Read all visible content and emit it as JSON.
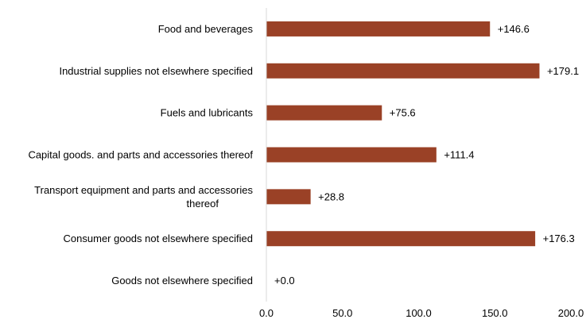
{
  "chart_data": {
    "type": "bar",
    "orientation": "horizontal",
    "categories": [
      [
        "Food and beverages"
      ],
      [
        "Industrial supplies not elsewhere specified"
      ],
      [
        "Fuels and lubricants"
      ],
      [
        "Capital goods. and parts and accessories thereof"
      ],
      [
        "Transport equipment and parts and accessories",
        "thereof"
      ],
      [
        "Consumer goods not elsewhere specified"
      ],
      [
        "Goods not elsewhere specified"
      ]
    ],
    "values": [
      146.6,
      179.1,
      75.6,
      111.4,
      28.8,
      176.3,
      0.0
    ],
    "data_labels": [
      "+146.6",
      "+179.1",
      "+75.6",
      "+111.4",
      "+28.8",
      "+176.3",
      "+0.0"
    ],
    "xlim": [
      0,
      200
    ],
    "xticks": [
      "0.0",
      "50.0",
      "100.0",
      "150.0",
      "200.0"
    ],
    "grid": false,
    "bar_color": "#9a4126",
    "axis_color": "#d9d9d9"
  }
}
